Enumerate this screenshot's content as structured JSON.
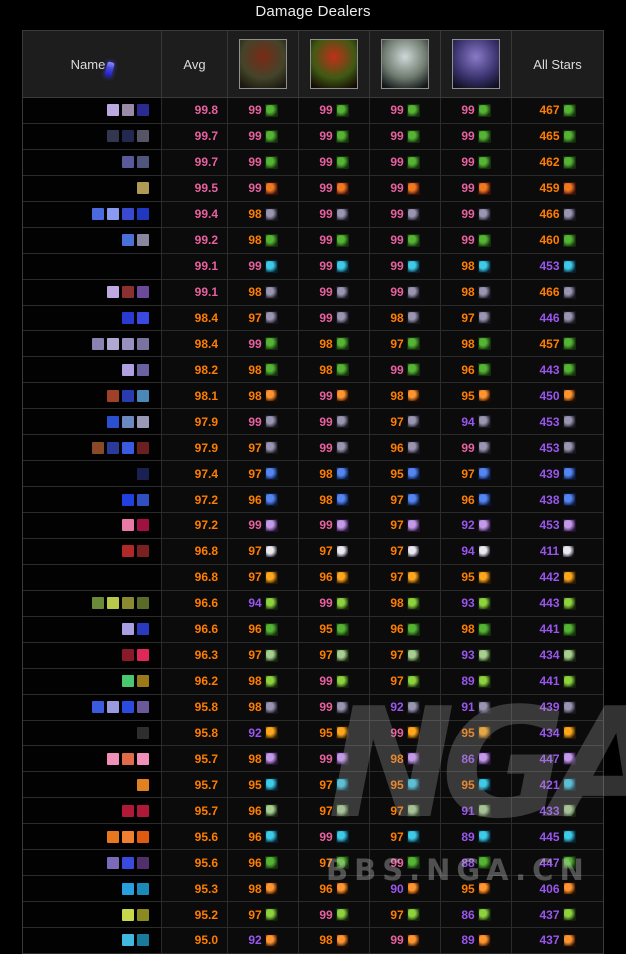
{
  "title": "Damage Dealers",
  "watermark": {
    "logo": "NGA",
    "text": "BBS.NGA.CN"
  },
  "palette": {
    "p": "#e8609f",
    "o": "#ff7d00",
    "u": "#9a55ee"
  },
  "table": {
    "headers": {
      "name": "Name",
      "avg": "Avg",
      "all_stars": "All Stars"
    },
    "bosses": [
      {
        "id": "boss-portrait-1",
        "c1": "#7a2a16",
        "c2": "#44442a",
        "c3": "#1a180e"
      },
      {
        "id": "boss-portrait-2",
        "c1": "#c03018",
        "c2": "#3f5a14",
        "c3": "#160b04"
      },
      {
        "id": "boss-portrait-3",
        "c1": "#cfd8d8",
        "c2": "#6e7a6e",
        "c3": "#121618"
      },
      {
        "id": "boss-portrait-4",
        "c1": "#8a7ac8",
        "c2": "#3c3470",
        "c3": "#0e1020"
      }
    ],
    "icon_styles": {
      "spec-green-serpent": {
        "bg": "#14300c",
        "fg": "#55b434"
      },
      "spec-phoenix": {
        "bg": "#38100a",
        "fg": "#f07820"
      },
      "spec-shadow": {
        "bg": "#17171f",
        "fg": "#9a95b0"
      },
      "spec-frost-claw": {
        "bg": "#06222e",
        "fg": "#3ecbe8"
      },
      "spec-fire-bolt": {
        "bg": "#200d02",
        "fg": "#ff9430"
      },
      "spec-lightning": {
        "bg": "#0a1838",
        "fg": "#5585f0"
      },
      "spec-arcane": {
        "bg": "#241434",
        "fg": "#c39ae8"
      },
      "spec-white-claw": {
        "bg": "#0e0e14",
        "fg": "#e8e8ee"
      },
      "spec-fel-skull": {
        "bg": "#2a1a02",
        "fg": "#ffa81e"
      },
      "spec-green-claw": {
        "bg": "#13240a",
        "fg": "#8ed23e"
      },
      "spec-plague-face": {
        "bg": "#16240f",
        "fg": "#a8cf92"
      }
    },
    "rows": [
      {
        "avg": "99.8",
        "ac": "p",
        "boss": [
          {
            "v": "99",
            "c": "p"
          },
          {
            "v": "99",
            "c": "p"
          },
          {
            "v": "99",
            "c": "p"
          },
          {
            "v": "99",
            "c": "p"
          }
        ],
        "stars": "467",
        "sc": "o",
        "icon": "spec-green-serpent",
        "patches": [
          "#b9a9e0",
          "#9a8aa8",
          "#2a2a90"
        ]
      },
      {
        "avg": "99.7",
        "ac": "p",
        "boss": [
          {
            "v": "99",
            "c": "p"
          },
          {
            "v": "99",
            "c": "p"
          },
          {
            "v": "99",
            "c": "p"
          },
          {
            "v": "99",
            "c": "p"
          }
        ],
        "stars": "465",
        "sc": "o",
        "icon": "spec-green-serpent",
        "patches": [
          "#32364e",
          "#23284e",
          "#555566"
        ]
      },
      {
        "avg": "99.7",
        "ac": "p",
        "boss": [
          {
            "v": "99",
            "c": "p"
          },
          {
            "v": "99",
            "c": "p"
          },
          {
            "v": "99",
            "c": "p"
          },
          {
            "v": "99",
            "c": "p"
          }
        ],
        "stars": "462",
        "sc": "o",
        "icon": "spec-green-serpent",
        "patches": [
          "#5a5a9a",
          "#50557c"
        ]
      },
      {
        "avg": "99.5",
        "ac": "p",
        "boss": [
          {
            "v": "99",
            "c": "p"
          },
          {
            "v": "99",
            "c": "p"
          },
          {
            "v": "99",
            "c": "p"
          },
          {
            "v": "99",
            "c": "p"
          }
        ],
        "stars": "459",
        "sc": "o",
        "icon": "spec-phoenix",
        "patches": [
          "#b09a55"
        ]
      },
      {
        "avg": "99.4",
        "ac": "p",
        "boss": [
          {
            "v": "98",
            "c": "o"
          },
          {
            "v": "99",
            "c": "p"
          },
          {
            "v": "99",
            "c": "p"
          },
          {
            "v": "99",
            "c": "p"
          }
        ],
        "stars": "466",
        "sc": "o",
        "icon": "spec-shadow",
        "patches": [
          "#4a6ae0",
          "#8a9af0",
          "#3a4ad0",
          "#2038c0"
        ]
      },
      {
        "avg": "99.2",
        "ac": "p",
        "boss": [
          {
            "v": "98",
            "c": "o"
          },
          {
            "v": "99",
            "c": "p"
          },
          {
            "v": "99",
            "c": "p"
          },
          {
            "v": "99",
            "c": "p"
          }
        ],
        "stars": "460",
        "sc": "o",
        "icon": "spec-green-serpent",
        "patches": [
          "#4a70d8",
          "#8a86a0"
        ]
      },
      {
        "avg": "99.1",
        "ac": "p",
        "boss": [
          {
            "v": "99",
            "c": "p"
          },
          {
            "v": "99",
            "c": "p"
          },
          {
            "v": "99",
            "c": "p"
          },
          {
            "v": "98",
            "c": "o"
          }
        ],
        "stars": "453",
        "sc": "u",
        "icon": "spec-frost-claw",
        "patches": []
      },
      {
        "avg": "99.1",
        "ac": "p",
        "boss": [
          {
            "v": "98",
            "c": "o"
          },
          {
            "v": "99",
            "c": "p"
          },
          {
            "v": "99",
            "c": "p"
          },
          {
            "v": "98",
            "c": "o"
          }
        ],
        "stars": "466",
        "sc": "o",
        "icon": "spec-shadow",
        "patches": [
          "#c0a8e0",
          "#8a3030",
          "#6a4a9a"
        ]
      },
      {
        "avg": "98.4",
        "ac": "o",
        "boss": [
          {
            "v": "97",
            "c": "o"
          },
          {
            "v": "99",
            "c": "p"
          },
          {
            "v": "98",
            "c": "o"
          },
          {
            "v": "97",
            "c": "o"
          }
        ],
        "stars": "446",
        "sc": "u",
        "icon": "spec-shadow",
        "patches": [
          "#2a3ad0",
          "#3a4ae0"
        ]
      },
      {
        "avg": "98.4",
        "ac": "o",
        "boss": [
          {
            "v": "99",
            "c": "p"
          },
          {
            "v": "98",
            "c": "o"
          },
          {
            "v": "97",
            "c": "o"
          },
          {
            "v": "98",
            "c": "o"
          }
        ],
        "stars": "457",
        "sc": "o",
        "icon": "spec-green-serpent",
        "patches": [
          "#8a82b0",
          "#b0a8d0",
          "#9a90c0",
          "#7a72a0"
        ]
      },
      {
        "avg": "98.2",
        "ac": "o",
        "boss": [
          {
            "v": "98",
            "c": "o"
          },
          {
            "v": "98",
            "c": "o"
          },
          {
            "v": "99",
            "c": "p"
          },
          {
            "v": "96",
            "c": "o"
          }
        ],
        "stars": "443",
        "sc": "u",
        "icon": "spec-green-serpent",
        "patches": [
          "#b0a0e0",
          "#6a62a0"
        ]
      },
      {
        "avg": "98.1",
        "ac": "o",
        "boss": [
          {
            "v": "98",
            "c": "o"
          },
          {
            "v": "99",
            "c": "p"
          },
          {
            "v": "98",
            "c": "o"
          },
          {
            "v": "95",
            "c": "o"
          }
        ],
        "stars": "450",
        "sc": "u",
        "icon": "spec-fire-bolt",
        "patches": [
          "#a04028",
          "#2a3ab0",
          "#4a88b8"
        ]
      },
      {
        "avg": "97.9",
        "ac": "o",
        "boss": [
          {
            "v": "99",
            "c": "p"
          },
          {
            "v": "99",
            "c": "p"
          },
          {
            "v": "97",
            "c": "o"
          },
          {
            "v": "94",
            "c": "u"
          }
        ],
        "stars": "453",
        "sc": "u",
        "icon": "spec-shadow",
        "patches": [
          "#2a50d0",
          "#6a8ac0",
          "#9a9ab8"
        ]
      },
      {
        "avg": "97.9",
        "ac": "o",
        "boss": [
          {
            "v": "97",
            "c": "o"
          },
          {
            "v": "99",
            "c": "p"
          },
          {
            "v": "96",
            "c": "o"
          },
          {
            "v": "99",
            "c": "p"
          }
        ],
        "stars": "453",
        "sc": "u",
        "icon": "spec-shadow",
        "patches": [
          "#8a4a2a",
          "#2a3a9a",
          "#3a5ae0",
          "#6a2020"
        ]
      },
      {
        "avg": "97.4",
        "ac": "o",
        "boss": [
          {
            "v": "97",
            "c": "o"
          },
          {
            "v": "98",
            "c": "o"
          },
          {
            "v": "95",
            "c": "o"
          },
          {
            "v": "97",
            "c": "o"
          }
        ],
        "stars": "439",
        "sc": "u",
        "icon": "spec-lightning",
        "patches": [
          "#1a2050"
        ]
      },
      {
        "avg": "97.2",
        "ac": "o",
        "boss": [
          {
            "v": "96",
            "c": "o"
          },
          {
            "v": "98",
            "c": "o"
          },
          {
            "v": "97",
            "c": "o"
          },
          {
            "v": "96",
            "c": "o"
          }
        ],
        "stars": "438",
        "sc": "u",
        "icon": "spec-lightning",
        "patches": [
          "#2040e0",
          "#3050c0"
        ]
      },
      {
        "avg": "97.2",
        "ac": "o",
        "boss": [
          {
            "v": "99",
            "c": "p"
          },
          {
            "v": "99",
            "c": "p"
          },
          {
            "v": "97",
            "c": "o"
          },
          {
            "v": "92",
            "c": "u"
          }
        ],
        "stars": "453",
        "sc": "u",
        "icon": "spec-arcane",
        "patches": [
          "#e87aa8",
          "#a01040"
        ]
      },
      {
        "avg": "96.8",
        "ac": "o",
        "boss": [
          {
            "v": "97",
            "c": "o"
          },
          {
            "v": "97",
            "c": "o"
          },
          {
            "v": "97",
            "c": "o"
          },
          {
            "v": "94",
            "c": "u"
          }
        ],
        "stars": "411",
        "sc": "u",
        "icon": "spec-white-claw",
        "patches": [
          "#b02828",
          "#7a2020"
        ]
      },
      {
        "avg": "96.8",
        "ac": "o",
        "boss": [
          {
            "v": "97",
            "c": "o"
          },
          {
            "v": "96",
            "c": "o"
          },
          {
            "v": "97",
            "c": "o"
          },
          {
            "v": "95",
            "c": "o"
          }
        ],
        "stars": "442",
        "sc": "u",
        "icon": "spec-fel-skull",
        "patches": []
      },
      {
        "avg": "96.6",
        "ac": "o",
        "boss": [
          {
            "v": "94",
            "c": "u"
          },
          {
            "v": "99",
            "c": "p"
          },
          {
            "v": "98",
            "c": "o"
          },
          {
            "v": "93",
            "c": "u"
          }
        ],
        "stars": "443",
        "sc": "u",
        "icon": "spec-green-claw",
        "patches": [
          "#6a8a3a",
          "#b8c84a",
          "#8a8a30",
          "#5a6a28"
        ]
      },
      {
        "avg": "96.6",
        "ac": "o",
        "boss": [
          {
            "v": "96",
            "c": "o"
          },
          {
            "v": "95",
            "c": "o"
          },
          {
            "v": "96",
            "c": "o"
          },
          {
            "v": "98",
            "c": "o"
          }
        ],
        "stars": "441",
        "sc": "u",
        "icon": "spec-green-serpent",
        "patches": [
          "#a8a0e0",
          "#2a3ac0"
        ]
      },
      {
        "avg": "96.3",
        "ac": "o",
        "boss": [
          {
            "v": "97",
            "c": "o"
          },
          {
            "v": "97",
            "c": "o"
          },
          {
            "v": "97",
            "c": "o"
          },
          {
            "v": "93",
            "c": "u"
          }
        ],
        "stars": "434",
        "sc": "u",
        "icon": "spec-plague-face",
        "patches": [
          "#8a1a2a",
          "#e02858"
        ]
      },
      {
        "avg": "96.2",
        "ac": "o",
        "boss": [
          {
            "v": "98",
            "c": "o"
          },
          {
            "v": "99",
            "c": "p"
          },
          {
            "v": "97",
            "c": "o"
          },
          {
            "v": "89",
            "c": "u"
          }
        ],
        "stars": "441",
        "sc": "u",
        "icon": "spec-green-claw",
        "patches": [
          "#4ac870",
          "#9a7a18"
        ]
      },
      {
        "avg": "95.8",
        "ac": "o",
        "boss": [
          {
            "v": "98",
            "c": "o"
          },
          {
            "v": "99",
            "c": "p"
          },
          {
            "v": "92",
            "c": "u"
          },
          {
            "v": "91",
            "c": "u"
          }
        ],
        "stars": "439",
        "sc": "u",
        "icon": "spec-shadow",
        "patches": [
          "#3a5ae0",
          "#9a9ae0",
          "#2a4ae0",
          "#6a5a9a"
        ]
      },
      {
        "avg": "95.8",
        "ac": "o",
        "boss": [
          {
            "v": "92",
            "c": "u"
          },
          {
            "v": "95",
            "c": "o"
          },
          {
            "v": "99",
            "c": "p"
          },
          {
            "v": "95",
            "c": "o"
          }
        ],
        "stars": "434",
        "sc": "u",
        "icon": "spec-fel-skull",
        "patches": [
          "#2e2e2e"
        ]
      },
      {
        "avg": "95.7",
        "ac": "o",
        "boss": [
          {
            "v": "98",
            "c": "o"
          },
          {
            "v": "99",
            "c": "p"
          },
          {
            "v": "98",
            "c": "o"
          },
          {
            "v": "86",
            "c": "u"
          }
        ],
        "stars": "447",
        "sc": "u",
        "icon": "spec-arcane",
        "patches": [
          "#f090b8",
          "#e06a4a",
          "#f090b8"
        ]
      },
      {
        "avg": "95.7",
        "ac": "o",
        "boss": [
          {
            "v": "95",
            "c": "o"
          },
          {
            "v": "97",
            "c": "o"
          },
          {
            "v": "95",
            "c": "o"
          },
          {
            "v": "95",
            "c": "o"
          }
        ],
        "stars": "421",
        "sc": "u",
        "icon": "spec-frost-claw",
        "patches": [
          "#e08020"
        ]
      },
      {
        "avg": "95.7",
        "ac": "o",
        "boss": [
          {
            "v": "96",
            "c": "o"
          },
          {
            "v": "97",
            "c": "o"
          },
          {
            "v": "97",
            "c": "o"
          },
          {
            "v": "91",
            "c": "u"
          }
        ],
        "stars": "433",
        "sc": "u",
        "icon": "spec-plague-face",
        "patches": [
          "#b01838",
          "#b01838"
        ]
      },
      {
        "avg": "95.6",
        "ac": "o",
        "boss": [
          {
            "v": "96",
            "c": "o"
          },
          {
            "v": "99",
            "c": "p"
          },
          {
            "v": "97",
            "c": "o"
          },
          {
            "v": "89",
            "c": "u"
          }
        ],
        "stars": "445",
        "sc": "u",
        "icon": "spec-frost-claw",
        "patches": [
          "#e87820",
          "#f08030",
          "#e05a10"
        ]
      },
      {
        "avg": "95.6",
        "ac": "o",
        "boss": [
          {
            "v": "96",
            "c": "o"
          },
          {
            "v": "97",
            "c": "o"
          },
          {
            "v": "99",
            "c": "p"
          },
          {
            "v": "88",
            "c": "u"
          }
        ],
        "stars": "447",
        "sc": "u",
        "icon": "spec-green-serpent",
        "patches": [
          "#7a6ab8",
          "#3a4ae0",
          "#50306a"
        ]
      },
      {
        "avg": "95.3",
        "ac": "o",
        "boss": [
          {
            "v": "98",
            "c": "o"
          },
          {
            "v": "96",
            "c": "o"
          },
          {
            "v": "90",
            "c": "u"
          },
          {
            "v": "95",
            "c": "o"
          }
        ],
        "stars": "406",
        "sc": "u",
        "icon": "spec-fire-bolt",
        "patches": [
          "#28a0e0",
          "#1a8ab8"
        ]
      },
      {
        "avg": "95.2",
        "ac": "o",
        "boss": [
          {
            "v": "97",
            "c": "o"
          },
          {
            "v": "99",
            "c": "p"
          },
          {
            "v": "97",
            "c": "o"
          },
          {
            "v": "86",
            "c": "u"
          }
        ],
        "stars": "437",
        "sc": "u",
        "icon": "spec-green-claw",
        "patches": [
          "#c8d84a",
          "#8a8a20"
        ]
      },
      {
        "avg": "95.0",
        "ac": "o",
        "boss": [
          {
            "v": "92",
            "c": "u"
          },
          {
            "v": "98",
            "c": "o"
          },
          {
            "v": "99",
            "c": "p"
          },
          {
            "v": "89",
            "c": "u"
          }
        ],
        "stars": "437",
        "sc": "u",
        "icon": "spec-fire-bolt",
        "patches": [
          "#40b8e0",
          "#1a7a9a"
        ]
      }
    ]
  }
}
